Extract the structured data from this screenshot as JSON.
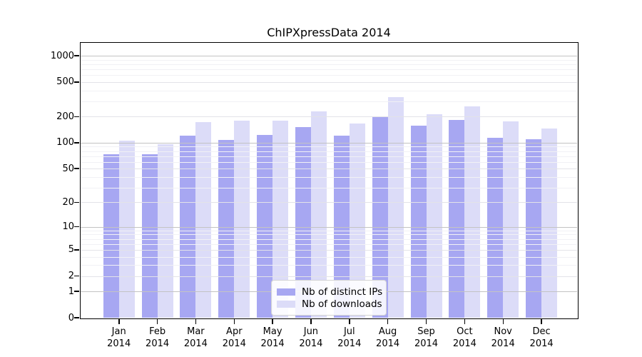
{
  "chart_data": {
    "type": "bar",
    "title": "ChIPXpressData 2014",
    "categories": [
      "Jan",
      "Feb",
      "Mar",
      "Apr",
      "May",
      "Jun",
      "Jul",
      "Aug",
      "Sep",
      "Oct",
      "Nov",
      "Dec"
    ],
    "x_year_label": "2014",
    "series": [
      {
        "name": "Nb of distinct IPs",
        "color": "#a7a7f2",
        "values": [
          74,
          74,
          121,
          107,
          123,
          152,
          121,
          196,
          158,
          184,
          113,
          110
        ]
      },
      {
        "name": "Nb of downloads",
        "color": "#dcdcf8",
        "values": [
          106,
          97,
          174,
          180,
          180,
          230,
          167,
          335,
          213,
          262,
          178,
          145
        ]
      }
    ],
    "yscale": "log1p",
    "yticks": [
      0,
      1,
      2,
      5,
      10,
      20,
      50,
      100,
      200,
      500,
      1000
    ],
    "ylim": [
      0,
      1400
    ],
    "grid": true,
    "legend_position": "lower center",
    "colors": {
      "grid_major": "#c3c3c3",
      "grid_mid": "#e3e3e8",
      "grid_minor": "#f1f1f5",
      "axis": "#000000"
    }
  }
}
